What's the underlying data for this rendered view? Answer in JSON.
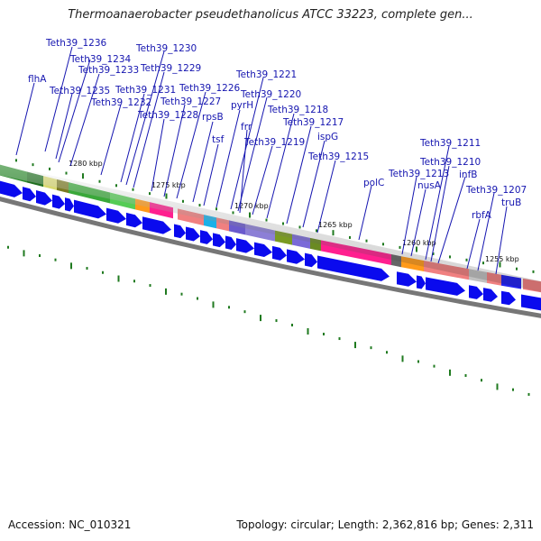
{
  "title": "Thermoanaerobacter pseudethanolicus ATCC 33223, complete gen...",
  "footer": {
    "accession": "Accession: NC_010321",
    "stats": "Topology: circular; Length: 2,362,816 bp; Genes: 2,311"
  },
  "scale_labels": [
    "1280 kbp",
    "1275 kbp",
    "1270 kbp",
    "1265 kbp",
    "1260 kbp",
    "1255 kbp"
  ],
  "gene_labels": [
    "Teth39_1236",
    "flhA",
    "Teth39_1234",
    "Teth39_1233",
    "Teth39_1235",
    "Teth39_1232",
    "Teth39_1231",
    "Teth39_1230",
    "Teth39_1229",
    "Teth39_1228",
    "Teth39_1227",
    "Teth39_1226",
    "rpsB",
    "tsf",
    "pyrH",
    "Teth39_1221",
    "Teth39_1220",
    "frr",
    "Teth39_1219",
    "Teth39_1218",
    "Teth39_1217",
    "ispG",
    "Teth39_1215",
    "polC",
    "Teth39_1213",
    "nusA",
    "Teth39_1211",
    "Teth39_1210",
    "infB",
    "rbfA",
    "Teth39_1207",
    "truB"
  ],
  "colors": {
    "gene_blue": "#0a0aee",
    "label_blue": "#1515b0",
    "backbone": "#777777",
    "gc_tick": "#1f7a1f"
  }
}
